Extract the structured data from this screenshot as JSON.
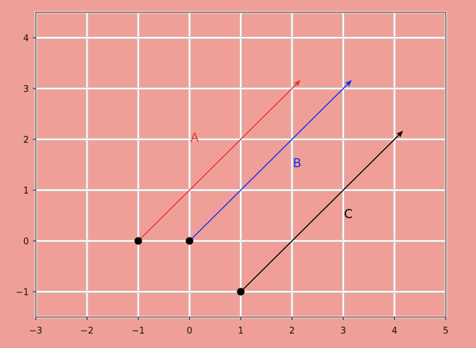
{
  "chart_data": {
    "type": "quiver",
    "title": "",
    "xlabel": "",
    "ylabel": "",
    "xlim": [
      -3,
      5
    ],
    "ylim": [
      -1.5,
      4.5
    ],
    "grid": true,
    "background": "#f09f98",
    "grid_color": "#ffffff",
    "x_ticks": [
      -3,
      -2,
      -1,
      0,
      1,
      2,
      3,
      4,
      5
    ],
    "x_tick_labels": [
      "−3",
      "−2",
      "−1",
      "0",
      "1",
      "2",
      "3",
      "4",
      "5"
    ],
    "y_ticks": [
      -1,
      0,
      1,
      2,
      3,
      4
    ],
    "y_tick_labels": [
      "−1",
      "0",
      "1",
      "2",
      "3",
      "4"
    ],
    "vectors": [
      {
        "name": "A",
        "start": [
          -1,
          0
        ],
        "end": [
          2,
          3
        ],
        "color": "#e03a2e",
        "label_pos": [
          0.1,
          2.05
        ]
      },
      {
        "name": "B",
        "start": [
          0,
          0
        ],
        "end": [
          3,
          3
        ],
        "color": "#1030f0",
        "label_pos": [
          2.1,
          1.55
        ]
      },
      {
        "name": "C",
        "start": [
          1,
          -1
        ],
        "end": [
          4,
          2
        ],
        "color": "#000000",
        "label_pos": [
          3.1,
          0.55
        ]
      }
    ],
    "points": [
      [
        -1,
        0
      ],
      [
        0,
        0
      ],
      [
        1,
        -1
      ]
    ]
  }
}
